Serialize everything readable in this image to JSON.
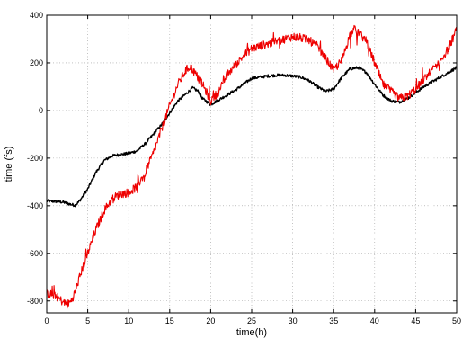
{
  "chart_data": {
    "type": "line",
    "title": "",
    "xlabel": "time(h)",
    "ylabel": "time (fs)",
    "xlim": [
      0,
      50
    ],
    "ylim": [
      -850,
      400
    ],
    "grid": true,
    "legend": "none",
    "x_ticks": [
      0,
      5,
      10,
      15,
      20,
      25,
      30,
      35,
      40,
      45,
      50
    ],
    "y_ticks": [
      -800,
      -600,
      -400,
      -200,
      0,
      200,
      400
    ],
    "x_tick_labels": [
      "0",
      "5",
      "10",
      "15",
      "20",
      "25",
      "30",
      "35",
      "40",
      "45",
      "50"
    ],
    "y_tick_labels": [
      "-800",
      "-600",
      "-400",
      "-200",
      "0",
      "200",
      "400"
    ],
    "series": [
      {
        "color": "#000000",
        "noise": 6,
        "x": [
          0,
          1,
          2,
          3,
          3.5,
          4,
          5,
          6,
          7,
          8,
          9,
          10,
          11,
          12,
          13,
          14,
          15,
          16,
          17,
          17.8,
          18.5,
          19,
          20,
          21,
          22,
          23,
          24,
          25,
          26,
          27,
          28,
          29,
          30,
          31,
          32,
          33,
          34,
          35,
          36,
          37,
          38,
          39,
          40,
          41,
          42,
          43,
          44,
          45,
          46,
          47,
          48,
          49,
          50
        ],
        "values": [
          -380,
          -382,
          -385,
          -395,
          -398,
          -380,
          -330,
          -260,
          -210,
          -190,
          -185,
          -180,
          -170,
          -140,
          -100,
          -60,
          -10,
          40,
          70,
          95,
          80,
          50,
          25,
          45,
          65,
          85,
          110,
          135,
          140,
          145,
          148,
          148,
          145,
          140,
          125,
          100,
          80,
          90,
          140,
          175,
          180,
          160,
          110,
          65,
          40,
          35,
          50,
          75,
          100,
          120,
          140,
          160,
          180
        ]
      },
      {
        "color": "#ee0000",
        "noise": 18,
        "x": [
          0,
          1,
          1.5,
          2,
          2.5,
          3,
          3.5,
          4,
          5,
          6,
          7,
          8,
          9,
          10,
          11,
          12,
          13,
          14,
          15,
          16,
          17,
          17.5,
          18,
          19,
          20,
          21,
          22,
          23,
          24,
          25,
          26,
          27,
          28,
          29,
          30,
          31,
          32,
          33,
          34,
          35,
          36,
          37,
          37.5,
          38,
          39,
          40,
          41,
          42,
          43,
          44,
          45,
          46,
          47,
          48,
          49,
          50
        ],
        "values": [
          -770,
          -775,
          -790,
          -805,
          -815,
          -800,
          -760,
          -700,
          -600,
          -500,
          -420,
          -370,
          -350,
          -345,
          -320,
          -260,
          -180,
          -80,
          20,
          110,
          170,
          185,
          160,
          110,
          40,
          80,
          150,
          190,
          230,
          260,
          270,
          280,
          290,
          300,
          310,
          305,
          295,
          270,
          220,
          170,
          210,
          320,
          340,
          330,
          290,
          200,
          110,
          80,
          50,
          60,
          90,
          130,
          170,
          210,
          260,
          340
        ]
      }
    ]
  }
}
